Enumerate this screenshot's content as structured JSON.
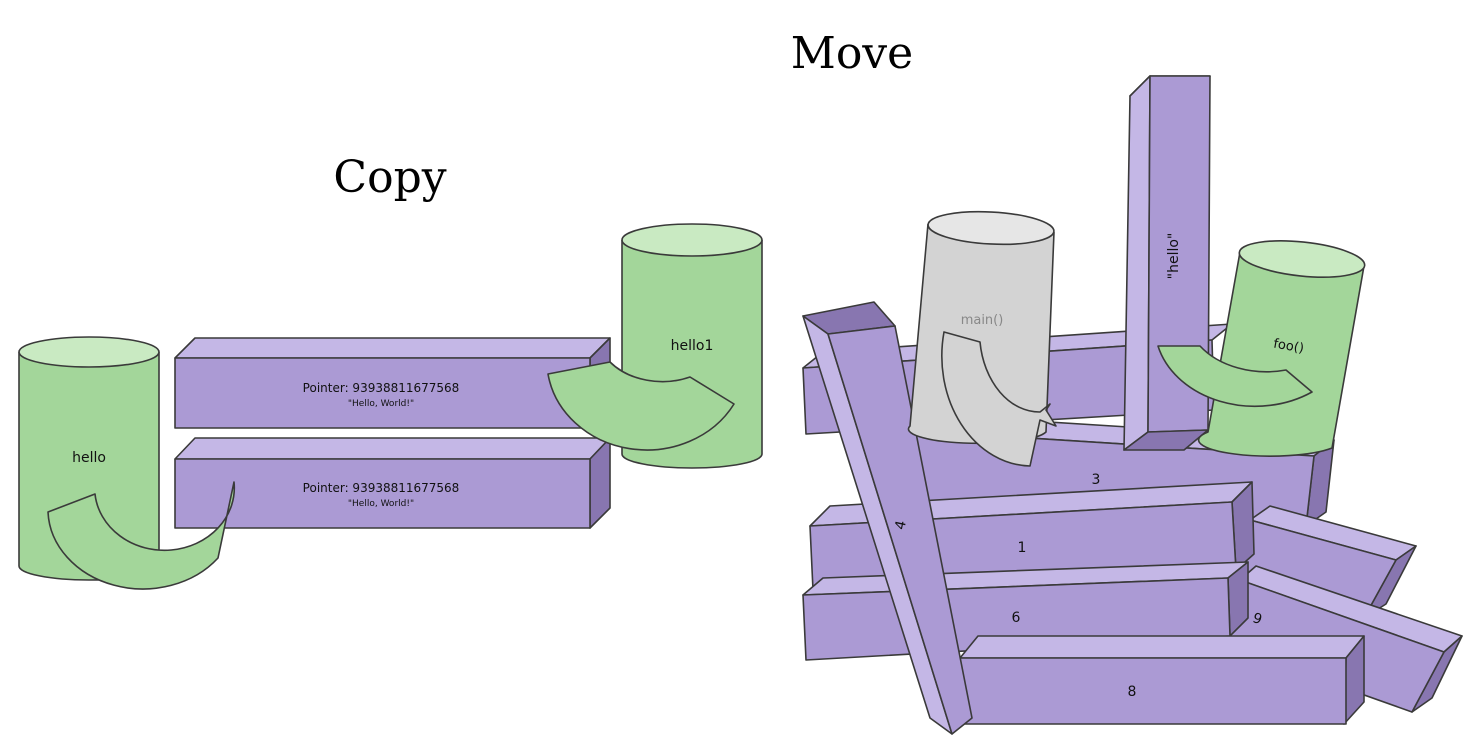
{
  "titles": {
    "move": "Move",
    "copy": "Copy"
  },
  "copy_section": {
    "cylinder_left": "hello",
    "cylinder_right": "hello1",
    "box_top": {
      "pointer": "Pointer: 93938811677568",
      "value": "\"Hello, World!\""
    },
    "box_bottom": {
      "pointer": "Pointer: 93938811677568",
      "value": "\"Hello, World!\""
    }
  },
  "move_section": {
    "cylinder_gray": "main()",
    "cylinder_green": "foo()",
    "pillar": "\"hello\"",
    "beam_labels": [
      "3",
      "1",
      "6",
      "9",
      "8",
      "4"
    ]
  },
  "colors": {
    "beam_front": "#ab9ad4",
    "beam_top": "#c4b7e6",
    "beam_side": "#8876b0",
    "cylinder_green": "#a3d69a",
    "cylinder_green_top": "#c9eac2",
    "cylinder_gray": "#d3d3d3",
    "cylinder_gray_top": "#e6e6e6"
  }
}
